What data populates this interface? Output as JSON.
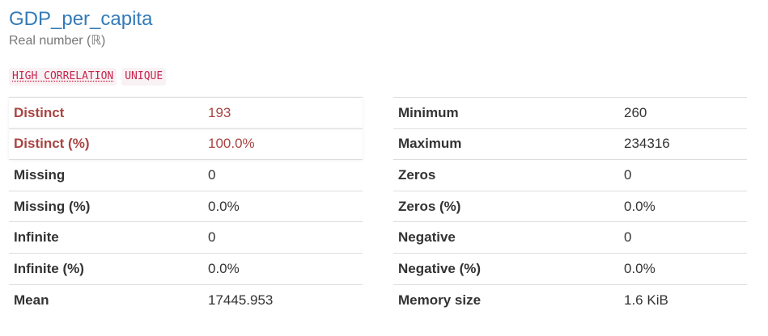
{
  "variable": {
    "name": "GDP_per_capita",
    "type": "Real number (ℝ)"
  },
  "badges": [
    "HIGH CORRELATION",
    "UNIQUE"
  ],
  "left_stats": [
    {
      "label": "Distinct",
      "value": "193"
    },
    {
      "label": "Distinct (%)",
      "value": "100.0%"
    },
    {
      "label": "Missing",
      "value": "0"
    },
    {
      "label": "Missing (%)",
      "value": "0.0%"
    },
    {
      "label": "Infinite",
      "value": "0"
    },
    {
      "label": "Infinite (%)",
      "value": "0.0%"
    },
    {
      "label": "Mean",
      "value": "17445.953"
    }
  ],
  "right_stats": [
    {
      "label": "Minimum",
      "value": "260"
    },
    {
      "label": "Maximum",
      "value": "234316"
    },
    {
      "label": "Zeros",
      "value": "0"
    },
    {
      "label": "Zeros (%)",
      "value": "0.0%"
    },
    {
      "label": "Negative",
      "value": "0"
    },
    {
      "label": "Negative (%)",
      "value": "0.0%"
    },
    {
      "label": "Memory size",
      "value": "1.6 KiB"
    }
  ],
  "colors": {
    "title": "#337ab7",
    "alert": "#a94442",
    "badge_text": "#c7254e",
    "badge_bg": "#f9f2f4"
  }
}
